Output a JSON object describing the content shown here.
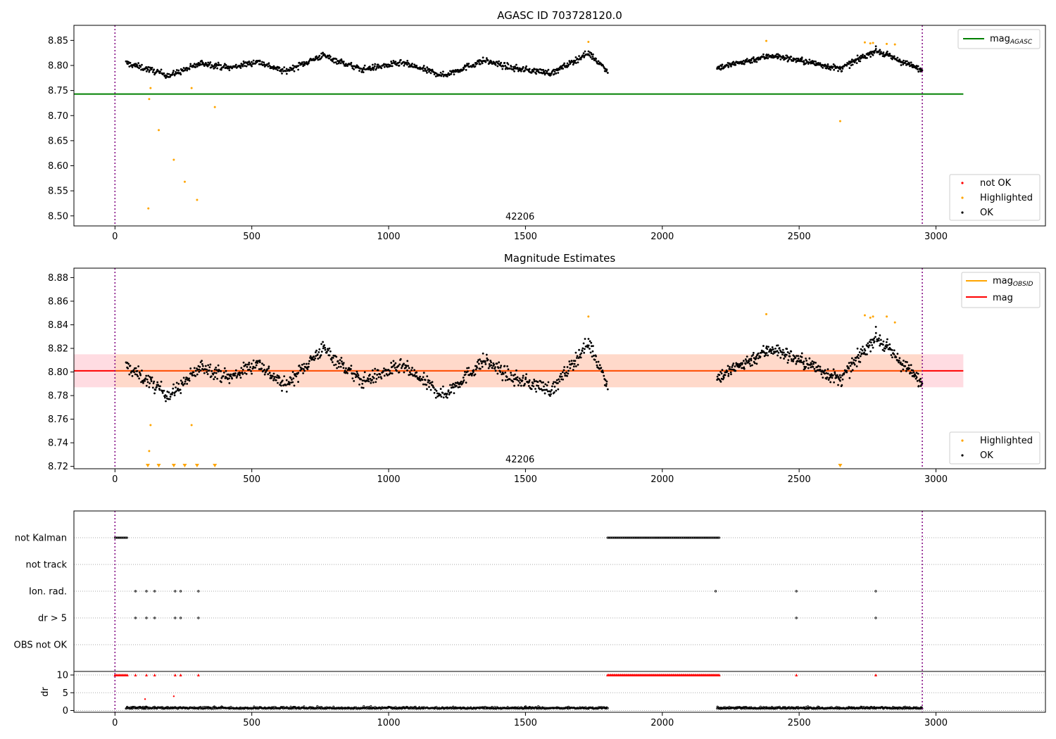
{
  "chart_data": [
    {
      "type": "scatter",
      "title": "AGASC ID 703728120.0",
      "xlim": [
        -150,
        3400
      ],
      "ylim": [
        8.48,
        8.88
      ],
      "x_ticks": [
        0,
        500,
        1000,
        1500,
        2000,
        2500,
        3000
      ],
      "y_ticks": [
        8.5,
        8.55,
        8.6,
        8.65,
        8.7,
        8.75,
        8.8,
        8.85
      ],
      "annotation": "42206",
      "annotation_x": 1480,
      "obsid_bounds": [
        0,
        2950
      ],
      "mag_agasc": {
        "value": 8.743,
        "x_range": [
          -150,
          3100
        ],
        "color": "#008000"
      },
      "legend_upper": {
        "position": "top-right",
        "label": "mag",
        "subscript": "AGASC",
        "color": "#008000"
      },
      "legend_lower": {
        "position": "bottom-right",
        "entries": [
          {
            "label": "not OK",
            "color": "#ff0000"
          },
          {
            "label": "Highlighted",
            "color": "#ffa500"
          },
          {
            "label": "OK",
            "color": "#000000"
          }
        ]
      },
      "segments": [
        {
          "x0": 40,
          "x1": 1800,
          "base": 8.8,
          "n": 880
        },
        {
          "x0": 2200,
          "x1": 2950,
          "base": 8.805,
          "n": 420
        }
      ],
      "trend_knots": [
        [
          40,
          0.005
        ],
        [
          200,
          -0.02
        ],
        [
          320,
          0.005
        ],
        [
          420,
          -0.005
        ],
        [
          520,
          0.008
        ],
        [
          620,
          -0.012
        ],
        [
          760,
          0.02
        ],
        [
          900,
          -0.008
        ],
        [
          1050,
          0.005
        ],
        [
          1200,
          -0.02
        ],
        [
          1350,
          0.01
        ],
        [
          1450,
          -0.005
        ],
        [
          1600,
          -0.015
        ],
        [
          1730,
          0.025
        ],
        [
          1800,
          -0.01
        ],
        [
          2200,
          -0.01
        ],
        [
          2400,
          0.015
        ],
        [
          2550,
          0.0
        ],
        [
          2650,
          -0.012
        ],
        [
          2780,
          0.025
        ],
        [
          2950,
          -0.015
        ]
      ],
      "highlighted": [
        [
          125,
          8.733
        ],
        [
          130,
          8.755
        ],
        [
          160,
          8.671
        ],
        [
          215,
          8.612
        ],
        [
          255,
          8.568
        ],
        [
          280,
          8.755
        ],
        [
          300,
          8.532
        ],
        [
          365,
          8.717
        ],
        [
          122,
          8.515
        ],
        [
          1730,
          8.847
        ],
        [
          2380,
          8.849
        ],
        [
          2650,
          8.689
        ],
        [
          2740,
          8.846
        ],
        [
          2760,
          8.844
        ],
        [
          2770,
          8.845
        ],
        [
          2820,
          8.843
        ],
        [
          2850,
          8.842
        ]
      ]
    },
    {
      "type": "scatter",
      "title": "Magnitude Estimates",
      "xlim": [
        -150,
        3400
      ],
      "ylim": [
        8.718,
        8.888
      ],
      "x_ticks": [
        0,
        500,
        1000,
        1500,
        2000,
        2500,
        3000
      ],
      "y_ticks": [
        8.72,
        8.74,
        8.76,
        8.78,
        8.8,
        8.82,
        8.84,
        8.86,
        8.88
      ],
      "annotation": "42206",
      "annotation_x": 1480,
      "obsid_bounds": [
        0,
        2950
      ],
      "mag_mean": {
        "value": 8.801,
        "x_range": [
          -150,
          3100
        ],
        "band": [
          8.787,
          8.815
        ],
        "color": "#ff0000"
      },
      "legend_upper": {
        "position": "top-right",
        "entries": [
          {
            "label": "mag",
            "subscript": "OBSID",
            "color": "#ffa500"
          },
          {
            "label": "mag",
            "subscript": "",
            "color": "#ff0000"
          }
        ]
      },
      "legend_lower": {
        "position": "bottom-right",
        "entries": [
          {
            "label": "Highlighted",
            "color": "#ffa500"
          },
          {
            "label": "OK",
            "color": "#000000"
          }
        ]
      },
      "highlighted": [
        [
          125,
          8.733
        ],
        [
          130,
          8.755
        ],
        [
          280,
          8.755
        ],
        [
          1730,
          8.847
        ],
        [
          2380,
          8.849
        ],
        [
          2740,
          8.848
        ],
        [
          2760,
          8.846
        ],
        [
          2770,
          8.847
        ],
        [
          2820,
          8.847
        ],
        [
          2850,
          8.842
        ]
      ],
      "clipped_markers_x": [
        120,
        160,
        215,
        255,
        300,
        365,
        2650
      ]
    },
    {
      "type": "scatter",
      "xlim": [
        -150,
        3400
      ],
      "x_ticks": [
        0,
        500,
        1000,
        1500,
        2000,
        2500,
        3000
      ],
      "flag_rows": [
        "not Kalman",
        "not track",
        "Ion. rad.",
        "dr > 5",
        "OBS not OK"
      ],
      "flags": {
        "not Kalman": [
          [
            0,
            45
          ],
          [
            1800,
            2210
          ]
        ],
        "not track": [],
        "Ion. rad.": [
          75,
          115,
          145,
          220,
          240,
          305,
          2195,
          2490,
          2780
        ],
        "dr > 5": [
          75,
          115,
          145,
          220,
          240,
          305,
          2490,
          2780
        ]
      },
      "dr": {
        "ylabel": "dr",
        "ylim": [
          -0.5,
          11
        ],
        "y_ticks": [
          0,
          5,
          10
        ],
        "clip_value": 10,
        "clipped_x": [
          0,
          5,
          10,
          15,
          20,
          25,
          30,
          35,
          40,
          45,
          75,
          115,
          145,
          220,
          240,
          305,
          2490,
          2780
        ],
        "clipped_range": [
          1800,
          2210
        ],
        "red_points": [
          [
            110,
            3.2
          ],
          [
            215,
            4.0
          ]
        ]
      }
    }
  ]
}
